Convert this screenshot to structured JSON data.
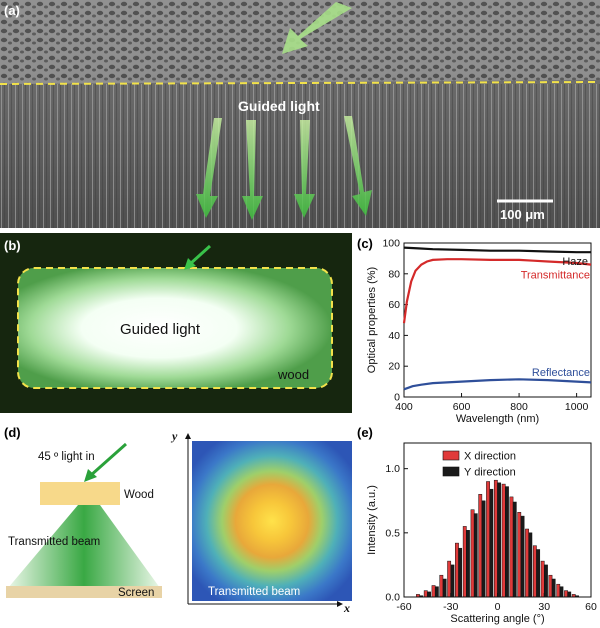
{
  "figure": {
    "panel_a": {
      "label": "(a)",
      "text_guided": "Guided light",
      "scale_bar": "100 μm"
    },
    "panel_b": {
      "label": "(b)",
      "text_guided": "Guided light",
      "text_wood": "wood"
    },
    "panel_c": {
      "label": "(c)",
      "xlabel": "Wavelength (nm)",
      "ylabel": "Optical properties (%)",
      "xlim": [
        400,
        1050
      ],
      "ylim": [
        0,
        100
      ],
      "xticks": [
        "400",
        "600",
        "800",
        "1000"
      ],
      "yticks": [
        "0",
        "20",
        "40",
        "60",
        "80",
        "100"
      ],
      "series_labels": [
        "Haze",
        "Transmittance",
        "Reflectance"
      ],
      "colors": [
        "#111111",
        "#d42a2a",
        "#2f4f9a"
      ]
    },
    "panel_d": {
      "label": "(d)",
      "light_in": "45 º light in",
      "wood": "Wood",
      "beam": "Transmitted beam",
      "screen": "Screen",
      "map_caption": "Transmitted beam",
      "axis_x": "x",
      "axis_y": "y"
    },
    "panel_e": {
      "label": "(e)",
      "xlabel": "Scattering angle (°)",
      "ylabel": "Intensity (a.u.)",
      "xticks": [
        "-60",
        "-30",
        "0",
        "30",
        "60"
      ],
      "yticks": [
        "0.0",
        "0.5",
        "1.0"
      ],
      "legend": [
        "X direction",
        "Y direction"
      ],
      "colors": [
        "#e03a3a",
        "#1a1a1a"
      ]
    }
  },
  "chart_data": [
    {
      "type": "line",
      "xlabel": "Wavelength (nm)",
      "ylabel": "Optical properties (%)",
      "xlim": [
        400,
        1050
      ],
      "ylim": [
        0,
        100
      ],
      "series": [
        {
          "name": "Haze",
          "x": [
            400,
            450,
            500,
            600,
            700,
            800,
            900,
            1000,
            1050
          ],
          "y": [
            97,
            96.5,
            96,
            95.5,
            95,
            95,
            94.5,
            94,
            94
          ]
        },
        {
          "name": "Transmittance",
          "x": [
            400,
            410,
            425,
            440,
            460,
            480,
            500,
            550,
            600,
            700,
            800,
            850,
            900,
            1000,
            1050
          ],
          "y": [
            48,
            62,
            75,
            82,
            86,
            88,
            89,
            89.5,
            89.5,
            89,
            89,
            88.5,
            88,
            87,
            86
          ]
        },
        {
          "name": "Reflectance",
          "x": [
            400,
            430,
            460,
            500,
            600,
            700,
            800,
            900,
            1000,
            1050
          ],
          "y": [
            5,
            7,
            8,
            9,
            10,
            11,
            11.5,
            11,
            10,
            9.5
          ]
        }
      ],
      "legend": "inline-labels",
      "grid": false
    },
    {
      "type": "bar",
      "xlabel": "Scattering angle (°)",
      "ylabel": "Intensity (a.u.)",
      "xlim": [
        -60,
        60
      ],
      "ylim": [
        0,
        1.2
      ],
      "categories": [
        -50,
        -45,
        -40,
        -35,
        -30,
        -25,
        -20,
        -15,
        -10,
        -5,
        0,
        5,
        10,
        15,
        20,
        25,
        30,
        35,
        40,
        45,
        50
      ],
      "series": [
        {
          "name": "X direction",
          "values": [
            0.02,
            0.05,
            0.09,
            0.17,
            0.28,
            0.42,
            0.55,
            0.68,
            0.8,
            0.9,
            0.91,
            0.88,
            0.78,
            0.66,
            0.53,
            0.4,
            0.28,
            0.17,
            0.1,
            0.05,
            0.02
          ]
        },
        {
          "name": "Y direction",
          "values": [
            0.01,
            0.04,
            0.08,
            0.14,
            0.25,
            0.38,
            0.52,
            0.65,
            0.75,
            0.84,
            0.89,
            0.86,
            0.74,
            0.63,
            0.5,
            0.37,
            0.25,
            0.14,
            0.08,
            0.04,
            0.01
          ]
        }
      ],
      "legend": "top-right",
      "grid": false
    }
  ]
}
